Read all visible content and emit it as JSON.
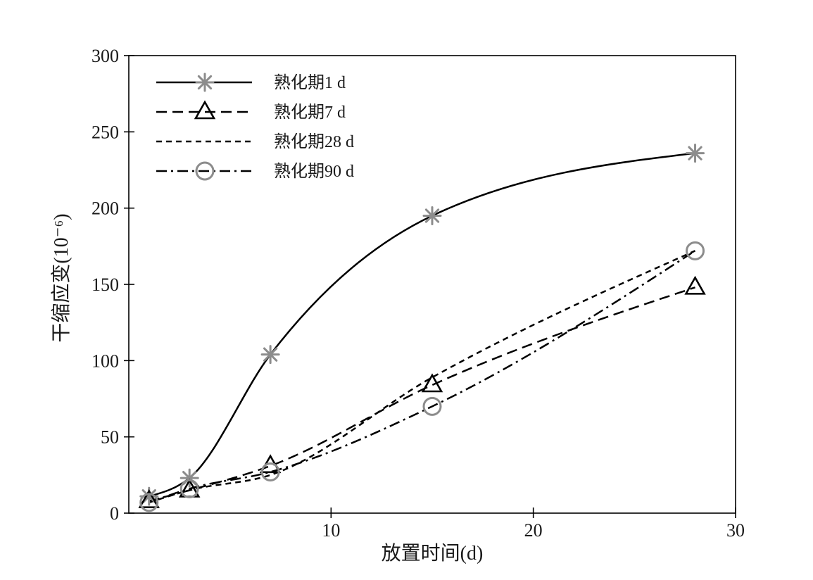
{
  "chart_data": {
    "type": "line",
    "xlabel": "放置时间(d)",
    "ylabel": "干缩应变(10⁻⁶)",
    "xlim": [
      0,
      30
    ],
    "ylim": [
      0,
      300
    ],
    "xticks": [
      10,
      20,
      30
    ],
    "yticks": [
      0,
      50,
      100,
      150,
      200,
      250,
      300
    ],
    "grid": false,
    "legend_position": "top-left",
    "x": [
      1,
      3,
      7,
      15,
      28
    ],
    "series": [
      {
        "name": "熟化期1 d",
        "values": [
          11,
          23,
          104,
          195,
          236
        ],
        "line_style": "solid",
        "marker": "asterisk",
        "line_color": "#000000",
        "marker_color": "#8c8c8c"
      },
      {
        "name": "熟化期7 d",
        "values": [
          8,
          15,
          31,
          84,
          148
        ],
        "line_style": "dashed",
        "marker": "triangle",
        "line_color": "#000000",
        "marker_color": "#000000"
      },
      {
        "name": "熟化期28 d",
        "values": [
          7,
          15,
          25,
          89,
          172
        ],
        "line_style": "short-dashed",
        "marker": "none",
        "line_color": "#000000",
        "marker_color": "#000000"
      },
      {
        "name": "熟化期90 d",
        "values": [
          7,
          16,
          27,
          70,
          172
        ],
        "line_style": "dash-dot",
        "marker": "circle",
        "line_color": "#000000",
        "marker_color": "#8c8c8c"
      }
    ]
  }
}
